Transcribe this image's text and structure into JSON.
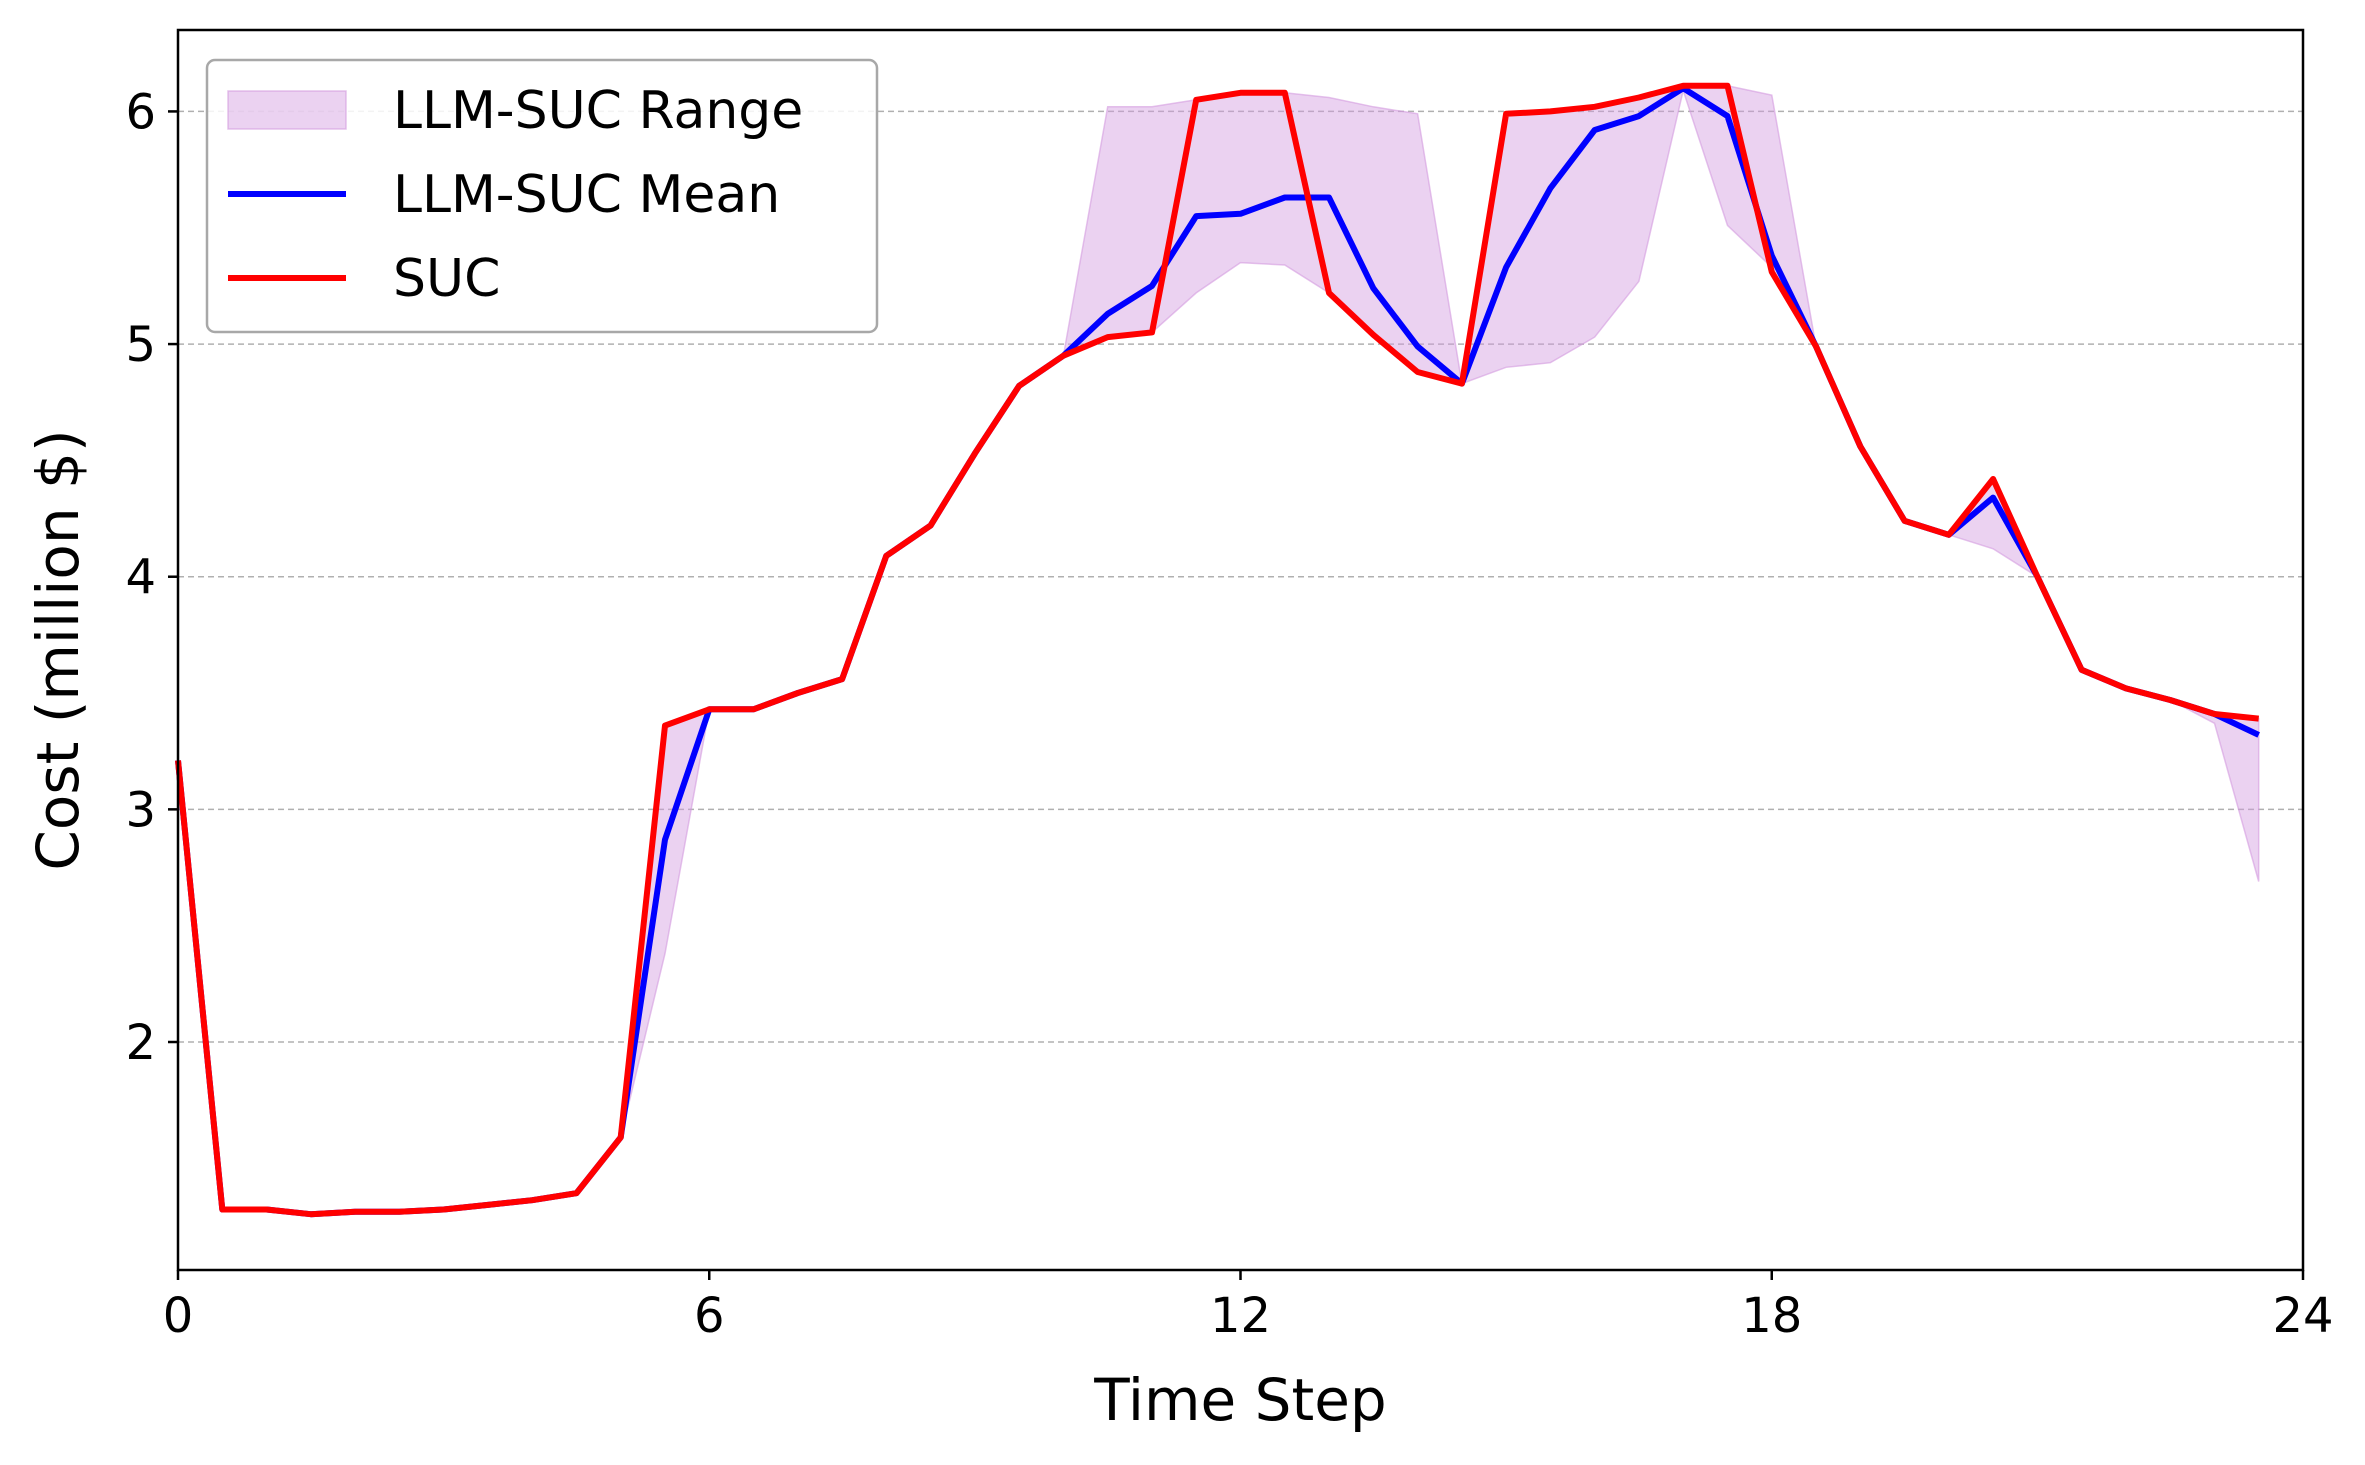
{
  "chart_data": {
    "type": "line",
    "xlabel": "Time Step",
    "ylabel": "Cost (million $)",
    "xlim": [
      0,
      24
    ],
    "ylim": [
      1.02,
      6.35
    ],
    "xticks": [
      0,
      6,
      12,
      18,
      24
    ],
    "yticks": [
      2,
      3,
      4,
      5,
      6
    ],
    "grid": "horizontal dashed",
    "legend_position": "top-left",
    "colors": {
      "range": "#d39be0",
      "mean": "#0000ff",
      "suc": "#ff0000",
      "grid": "#b0b0b0"
    },
    "legend": [
      {
        "label": "LLM-SUC Range",
        "kind": "range"
      },
      {
        "label": "LLM-SUC Mean",
        "kind": "mean"
      },
      {
        "label": "SUC",
        "kind": "suc"
      }
    ],
    "x": [
      0,
      0.5,
      1,
      1.5,
      2,
      2.5,
      3,
      3.5,
      4,
      4.5,
      5,
      5.5,
      6,
      6.5,
      7,
      7.5,
      8,
      8.5,
      9,
      9.5,
      10,
      10.5,
      11,
      11.5,
      12,
      12.5,
      13,
      13.5,
      14,
      14.5,
      15,
      15.5,
      16,
      16.5,
      17,
      17.5,
      18,
      18.5,
      19,
      19.5,
      20,
      20.5,
      21,
      21.5,
      22,
      22.5,
      23,
      23.5
    ],
    "range_upper": [
      3.21,
      1.28,
      1.28,
      1.26,
      1.27,
      1.27,
      1.28,
      1.3,
      1.32,
      1.35,
      1.59,
      3.36,
      3.43,
      3.43,
      3.5,
      3.56,
      4.09,
      4.22,
      4.53,
      4.82,
      4.95,
      6.02,
      6.02,
      6.05,
      6.08,
      6.08,
      6.06,
      6.02,
      5.99,
      4.83,
      5.99,
      6.0,
      6.02,
      6.06,
      6.11,
      6.11,
      6.07,
      4.99,
      4.56,
      4.24,
      4.18,
      4.42,
      4.0,
      3.6,
      3.52,
      3.47,
      3.41,
      3.39
    ],
    "range_lower": [
      3.21,
      1.28,
      1.28,
      1.26,
      1.27,
      1.27,
      1.28,
      1.3,
      1.32,
      1.35,
      1.59,
      2.38,
      3.43,
      3.43,
      3.5,
      3.56,
      4.09,
      4.22,
      4.53,
      4.82,
      4.95,
      5.03,
      5.05,
      5.22,
      5.35,
      5.34,
      5.22,
      5.04,
      4.88,
      4.83,
      4.9,
      4.92,
      5.03,
      5.27,
      6.09,
      5.51,
      5.33,
      4.99,
      4.56,
      4.24,
      4.18,
      4.12,
      4.0,
      3.6,
      3.52,
      3.47,
      3.37,
      2.69
    ],
    "series": [
      {
        "name": "LLM-SUC Mean",
        "values": [
          3.21,
          1.28,
          1.28,
          1.26,
          1.27,
          1.27,
          1.28,
          1.3,
          1.32,
          1.35,
          1.59,
          2.87,
          3.43,
          3.43,
          3.5,
          3.56,
          4.09,
          4.22,
          4.53,
          4.82,
          4.95,
          5.13,
          5.25,
          5.55,
          5.56,
          5.63,
          5.63,
          5.24,
          4.99,
          4.83,
          5.33,
          5.67,
          5.92,
          5.98,
          6.1,
          5.98,
          5.38,
          4.99,
          4.56,
          4.24,
          4.18,
          4.34,
          4.0,
          3.6,
          3.52,
          3.47,
          3.41,
          3.32
        ]
      },
      {
        "name": "SUC",
        "values": [
          3.21,
          1.28,
          1.28,
          1.26,
          1.27,
          1.27,
          1.28,
          1.3,
          1.32,
          1.35,
          1.59,
          3.36,
          3.43,
          3.43,
          3.5,
          3.56,
          4.09,
          4.22,
          4.53,
          4.82,
          4.95,
          5.03,
          5.05,
          6.05,
          6.08,
          6.08,
          5.22,
          5.04,
          4.88,
          4.83,
          5.99,
          6.0,
          6.02,
          6.06,
          6.11,
          6.11,
          5.31,
          4.99,
          4.56,
          4.24,
          4.18,
          4.42,
          4.0,
          3.6,
          3.52,
          3.47,
          3.41,
          3.39
        ]
      }
    ]
  }
}
